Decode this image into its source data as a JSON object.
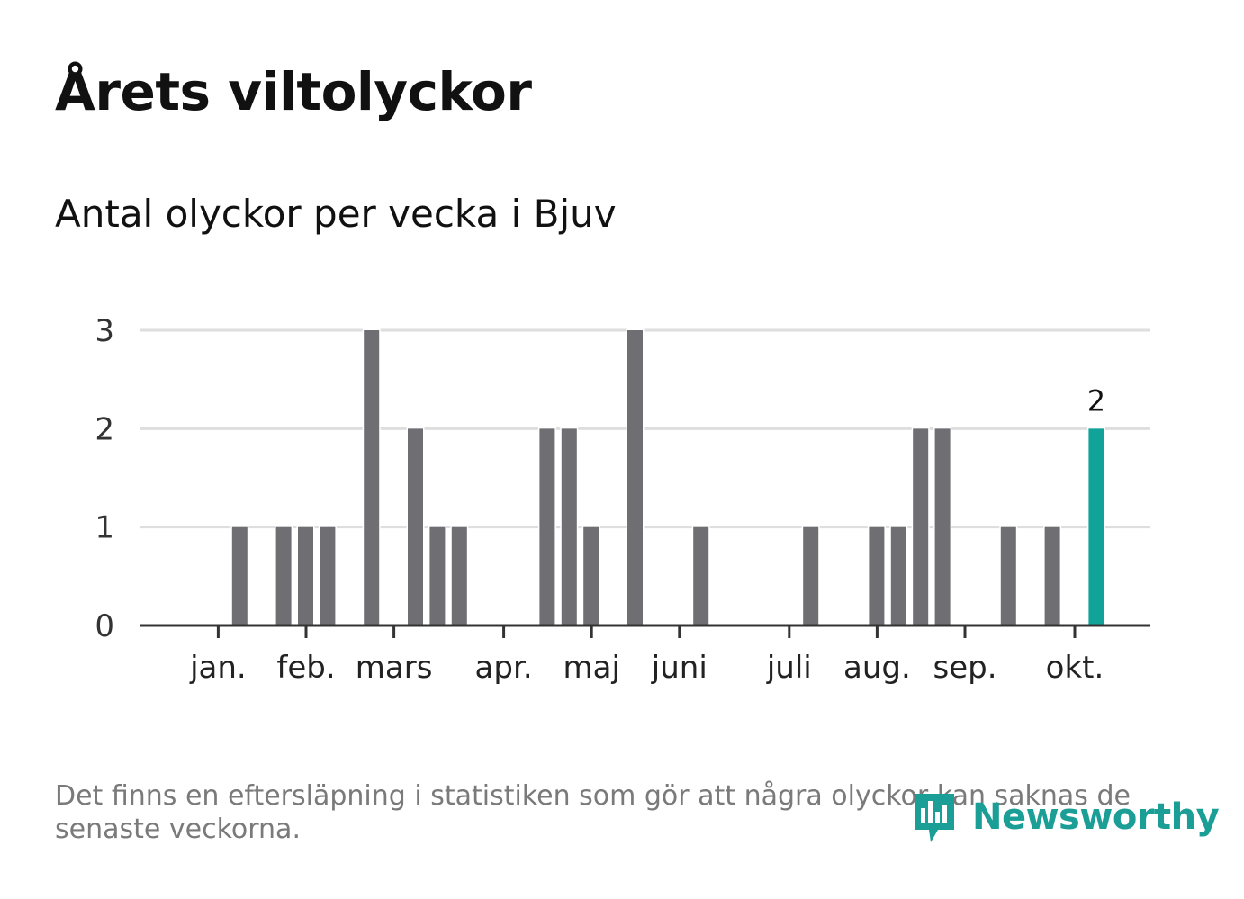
{
  "title": "Årets viltolyckor",
  "subtitle": "Antal olyckor per vecka i Bjuv",
  "footnote": "Det finns en eftersläpning i statistiken som gör att några olyckor kan saknas de senaste veckorna.",
  "brand": {
    "name": "Newsworthy",
    "icon": "newsworthy-logo-icon"
  },
  "colors": {
    "bar": "#6f6e73",
    "highlight": "#11a39a",
    "grid": "#dedede",
    "axis": "#333333"
  },
  "chart_data": {
    "type": "bar",
    "title": "Årets viltolyckor",
    "subtitle": "Antal olyckor per vecka i Bjuv",
    "xlabel": "",
    "ylabel": "",
    "ylim": [
      0,
      3
    ],
    "yticks": [
      0,
      1,
      2,
      3
    ],
    "grid": true,
    "weeks": [
      1,
      2,
      3,
      4,
      5,
      6,
      7,
      8,
      9,
      10,
      11,
      12,
      13,
      14,
      15,
      16,
      17,
      18,
      19,
      20,
      21,
      22,
      23,
      24,
      25,
      26,
      27,
      28,
      29,
      30,
      31,
      32,
      33,
      34,
      35,
      36,
      37,
      38,
      39,
      40,
      41,
      42
    ],
    "values": [
      0,
      0,
      1,
      0,
      1,
      1,
      1,
      0,
      3,
      0,
      2,
      1,
      1,
      0,
      0,
      0,
      2,
      2,
      1,
      0,
      3,
      0,
      0,
      1,
      0,
      0,
      0,
      0,
      1,
      0,
      0,
      1,
      1,
      2,
      2,
      0,
      0,
      1,
      0,
      1,
      0,
      2
    ],
    "highlight_index": 41,
    "highlight_label": "2",
    "month_ticks": [
      {
        "label": "jan.",
        "week": 2.5
      },
      {
        "label": "feb.",
        "week": 6.5
      },
      {
        "label": "mars",
        "week": 10.5
      },
      {
        "label": "apr.",
        "week": 15.5
      },
      {
        "label": "maj",
        "week": 19.5
      },
      {
        "label": "juni",
        "week": 23.5
      },
      {
        "label": "juli",
        "week": 28.5
      },
      {
        "label": "aug.",
        "week": 32.5
      },
      {
        "label": "sep.",
        "week": 36.5
      },
      {
        "label": "okt.",
        "week": 41.5
      }
    ]
  }
}
